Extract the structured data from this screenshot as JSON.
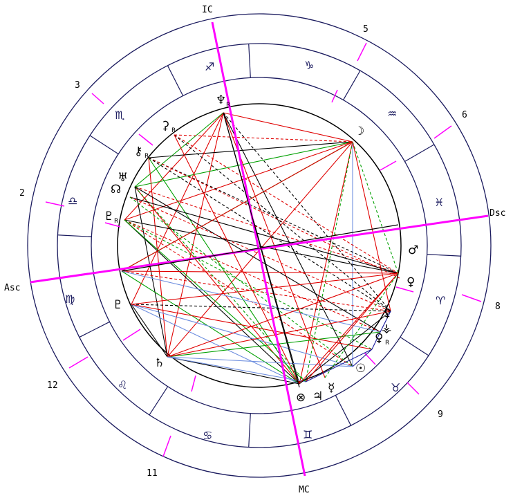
{
  "angles": {
    "IC": "IC",
    "MC": "MC",
    "Asc": "Asc",
    "Dsc": "Dsc"
  },
  "house_numbers": [
    "2",
    "3",
    "5",
    "6",
    "8",
    "9",
    "11",
    "12"
  ],
  "zodiac_signs": [
    {
      "glyph": "♐",
      "name": "sagittarius-icon"
    },
    {
      "glyph": "♑",
      "name": "capricorn-icon"
    },
    {
      "glyph": "♒",
      "name": "aquarius-icon"
    },
    {
      "glyph": "♓",
      "name": "pisces-icon"
    },
    {
      "glyph": "♈",
      "name": "aries-icon"
    },
    {
      "glyph": "♉",
      "name": "taurus-icon"
    },
    {
      "glyph": "♊",
      "name": "gemini-icon"
    },
    {
      "glyph": "♋",
      "name": "cancer-icon"
    },
    {
      "glyph": "♌",
      "name": "leo-icon"
    },
    {
      "glyph": "♍",
      "name": "virgo-icon"
    },
    {
      "glyph": "♎",
      "name": "libra-icon"
    },
    {
      "glyph": "♏",
      "name": "scorpio-icon"
    }
  ],
  "planets": [
    {
      "key": "neptune",
      "glyph": "♆",
      "retro": "R",
      "name": "neptune-icon"
    },
    {
      "key": "ceres",
      "glyph": "⚳",
      "retro": "R",
      "name": "ceres-icon"
    },
    {
      "key": "chiron",
      "glyph": "⚷",
      "retro": "R",
      "name": "chiron-icon"
    },
    {
      "key": "uranus",
      "glyph": "♅",
      "retro": "",
      "name": "uranus-icon"
    },
    {
      "key": "node",
      "glyph": "☊",
      "retro": "",
      "name": "north-node-icon"
    },
    {
      "key": "pluto",
      "glyph": "♇",
      "retro": "R",
      "name": "pluto-icon"
    },
    {
      "key": "pluto2",
      "glyph": "♇",
      "retro": "",
      "name": "pluto-alt-icon"
    },
    {
      "key": "saturn",
      "glyph": "♄",
      "retro": "",
      "name": "saturn-icon"
    },
    {
      "key": "fortune",
      "glyph": "⊗",
      "retro": "",
      "name": "part-of-fortune-icon"
    },
    {
      "key": "jupiter",
      "glyph": "♃",
      "retro": "",
      "name": "jupiter-icon"
    },
    {
      "key": "mercury",
      "glyph": "☿",
      "retro": "",
      "name": "mercury-icon"
    },
    {
      "key": "sun",
      "glyph": "☉",
      "retro": "",
      "name": "sun-icon"
    },
    {
      "key": "venus2",
      "glyph": "♀",
      "retro": "R",
      "name": "venus-retro-icon"
    },
    {
      "key": "vesta",
      "glyph": "⚶",
      "retro": "",
      "name": "vesta-icon"
    },
    {
      "key": "lilith",
      "glyph": "⚸",
      "retro": "",
      "name": "lilith-icon"
    },
    {
      "key": "mars",
      "glyph": "♂",
      "retro": "",
      "name": "mars-icon"
    },
    {
      "key": "venus",
      "glyph": "♀",
      "retro": "",
      "name": "venus-icon"
    },
    {
      "key": "moon",
      "glyph": "☽",
      "retro": "",
      "name": "moon-icon"
    }
  ],
  "aspect_colors": {
    "red": "#e00000",
    "green": "#00a000",
    "black": "#000000",
    "blue": "#6f8fdf",
    "navy": "#1a1a9a",
    "magenta": "#ff00ff"
  }
}
